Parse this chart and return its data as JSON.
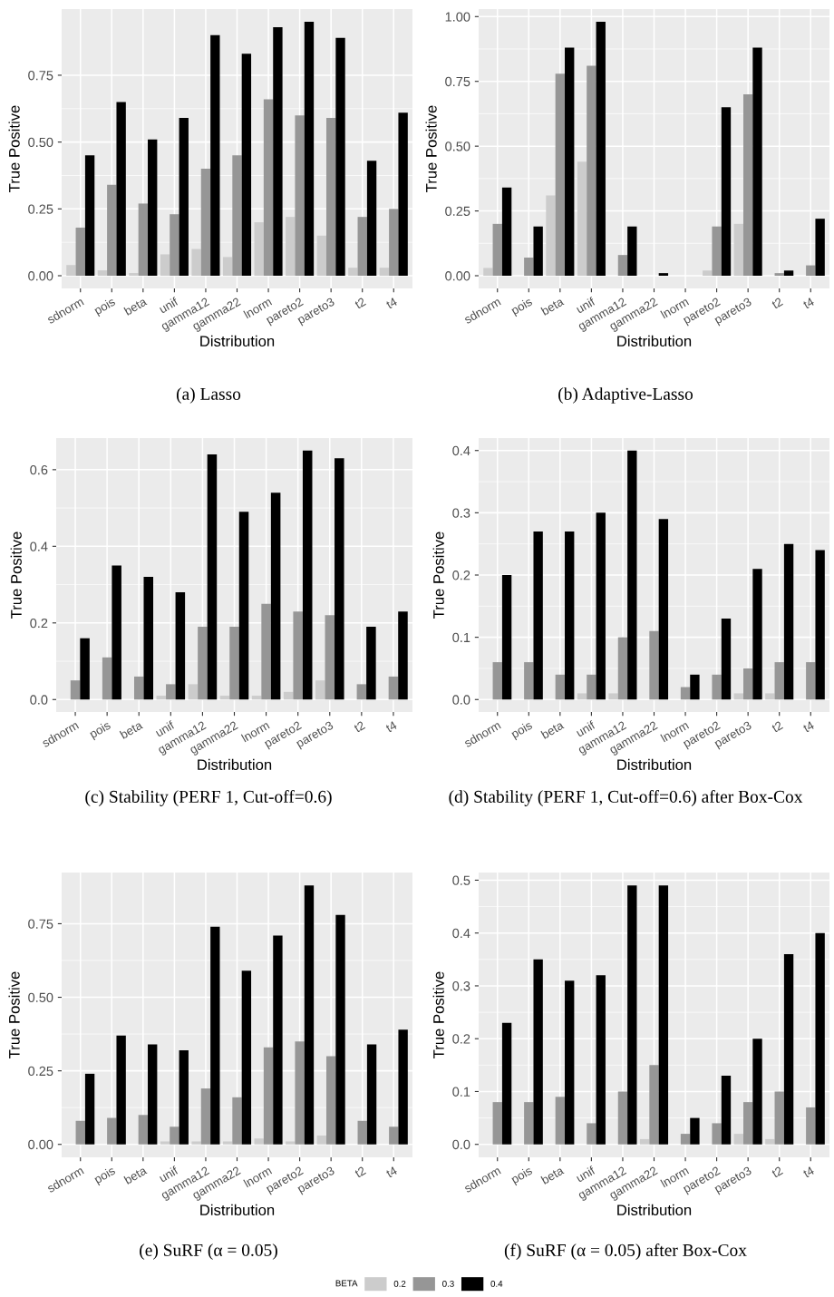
{
  "chart_data": [
    {
      "type": "bar",
      "xlabel": "Distribution",
      "ylabel": "True Positive",
      "annotations": [
        "(a) Lasso"
      ],
      "categories": [
        "sdnorm",
        "pois",
        "beta",
        "unif",
        "gamma12",
        "gamma22",
        "lnorm",
        "pareto2",
        "pareto3",
        "t2",
        "t4"
      ],
      "ylim": [
        -0.0475,
        0.9975
      ],
      "yticks": [
        {
          "value": 0,
          "label": "0.00"
        },
        {
          "value": 0.25,
          "label": "0.25"
        },
        {
          "value": 0.5,
          "label": "0.50"
        },
        {
          "value": 0.75,
          "label": "0.75"
        }
      ],
      "grid": true,
      "series": [
        {
          "color": "#cccccc",
          "values": [
            0.04,
            0.02,
            0.01,
            0.08,
            0.1,
            0.07,
            0.2,
            0.22,
            0.15,
            0.03,
            0.03
          ]
        },
        {
          "color": "#969696",
          "values": [
            0.18,
            0.34,
            0.27,
            0.23,
            0.4,
            0.45,
            0.66,
            0.6,
            0.59,
            0.22,
            0.25
          ]
        },
        {
          "color": "#000000",
          "values": [
            0.45,
            0.65,
            0.51,
            0.59,
            0.9,
            0.83,
            0.93,
            0.95,
            0.89,
            0.43,
            0.61
          ]
        }
      ]
    },
    {
      "type": "bar",
      "xlabel": "Distribution",
      "ylabel": "True Positive",
      "annotations": [
        "(b) Adaptive-Lasso"
      ],
      "categories": [
        "sdnorm",
        "pois",
        "beta",
        "unif",
        "gamma12",
        "gamma22",
        "lnorm",
        "pareto2",
        "pareto3",
        "t2",
        "t4"
      ],
      "ylim": [
        -0.049,
        1.029
      ],
      "yticks": [
        {
          "value": 0,
          "label": "0.00"
        },
        {
          "value": 0.25,
          "label": "0.25"
        },
        {
          "value": 0.5,
          "label": "0.50"
        },
        {
          "value": 0.75,
          "label": "0.75"
        },
        {
          "value": 1,
          "label": "1.00"
        }
      ],
      "grid": true,
      "series": [
        {
          "color": "#cccccc",
          "values": [
            0.03,
            0,
            0.31,
            0.44,
            0,
            0,
            0,
            0.02,
            0.2,
            0,
            0
          ]
        },
        {
          "color": "#969696",
          "values": [
            0.2,
            0.07,
            0.78,
            0.81,
            0.08,
            0,
            0,
            0.19,
            0.7,
            0.01,
            0.04
          ]
        },
        {
          "color": "#000000",
          "values": [
            0.34,
            0.19,
            0.88,
            0.98,
            0.19,
            0.01,
            0,
            0.65,
            0.88,
            0.02,
            0.22
          ]
        }
      ]
    },
    {
      "type": "bar",
      "xlabel": "Distribution",
      "ylabel": "True Positive",
      "annotations": [
        "(c) Stability (PERF 1, Cut-off=0.6)"
      ],
      "categories": [
        "sdnorm",
        "pois",
        "beta",
        "unif",
        "gamma12",
        "gamma22",
        "lnorm",
        "pareto2",
        "pareto3",
        "t2",
        "t4"
      ],
      "ylim": [
        -0.0325,
        0.6825
      ],
      "yticks": [
        {
          "value": 0,
          "label": "0.0"
        },
        {
          "value": 0.2,
          "label": "0.2"
        },
        {
          "value": 0.4,
          "label": "0.4"
        },
        {
          "value": 0.6,
          "label": "0.6"
        }
      ],
      "grid": true,
      "series": [
        {
          "color": "#cccccc",
          "values": [
            0,
            0,
            0,
            0.01,
            0.04,
            0.01,
            0.01,
            0.02,
            0.05,
            0,
            0
          ]
        },
        {
          "color": "#969696",
          "values": [
            0.05,
            0.11,
            0.06,
            0.04,
            0.19,
            0.19,
            0.25,
            0.23,
            0.22,
            0.04,
            0.06
          ]
        },
        {
          "color": "#000000",
          "values": [
            0.16,
            0.35,
            0.32,
            0.28,
            0.64,
            0.49,
            0.54,
            0.65,
            0.63,
            0.19,
            0.23
          ]
        }
      ]
    },
    {
      "type": "bar",
      "xlabel": "Distribution",
      "ylabel": "True Positive",
      "annotations": [
        "(d) Stability (PERF 1, Cut-off=0.6) after Box-Cox"
      ],
      "categories": [
        "sdnorm",
        "pois",
        "beta",
        "unif",
        "gamma12",
        "gamma22",
        "lnorm",
        "pareto2",
        "pareto3",
        "t2",
        "t4"
      ],
      "ylim": [
        -0.02,
        0.42
      ],
      "yticks": [
        {
          "value": 0,
          "label": "0.0"
        },
        {
          "value": 0.1,
          "label": "0.1"
        },
        {
          "value": 0.2,
          "label": "0.2"
        },
        {
          "value": 0.3,
          "label": "0.3"
        },
        {
          "value": 0.4,
          "label": "0.4"
        }
      ],
      "grid": true,
      "series": [
        {
          "color": "#cccccc",
          "values": [
            0,
            0,
            0,
            0.01,
            0.01,
            0,
            0,
            0,
            0.01,
            0.01,
            0
          ]
        },
        {
          "color": "#969696",
          "values": [
            0.06,
            0.06,
            0.04,
            0.04,
            0.1,
            0.11,
            0.02,
            0.04,
            0.05,
            0.06,
            0.06
          ]
        },
        {
          "color": "#000000",
          "values": [
            0.2,
            0.27,
            0.27,
            0.3,
            0.4,
            0.29,
            0.04,
            0.13,
            0.21,
            0.25,
            0.24
          ]
        }
      ]
    },
    {
      "type": "bar",
      "xlabel": "Distribution",
      "ylabel": "True Positive",
      "annotations": [
        "(e) SuRF (α = 0.05)"
      ],
      "categories": [
        "sdnorm",
        "pois",
        "beta",
        "unif",
        "gamma12",
        "gamma22",
        "lnorm",
        "pareto2",
        "pareto3",
        "t2",
        "t4"
      ],
      "ylim": [
        -0.044,
        0.924
      ],
      "yticks": [
        {
          "value": 0,
          "label": "0.00"
        },
        {
          "value": 0.25,
          "label": "0.25"
        },
        {
          "value": 0.5,
          "label": "0.50"
        },
        {
          "value": 0.75,
          "label": "0.75"
        }
      ],
      "grid": true,
      "series": [
        {
          "color": "#cccccc",
          "values": [
            0,
            0,
            0,
            0.01,
            0.01,
            0.01,
            0.02,
            0.01,
            0.03,
            0,
            0
          ]
        },
        {
          "color": "#969696",
          "values": [
            0.08,
            0.09,
            0.1,
            0.06,
            0.19,
            0.16,
            0.33,
            0.35,
            0.3,
            0.08,
            0.06
          ]
        },
        {
          "color": "#000000",
          "values": [
            0.24,
            0.37,
            0.34,
            0.32,
            0.74,
            0.59,
            0.71,
            0.88,
            0.78,
            0.34,
            0.39
          ]
        }
      ]
    },
    {
      "type": "bar",
      "xlabel": "Distribution",
      "ylabel": "True Positive",
      "annotations": [
        "(f) SuRF (α = 0.05) after Box-Cox"
      ],
      "categories": [
        "sdnorm",
        "pois",
        "beta",
        "unif",
        "gamma12",
        "gamma22",
        "lnorm",
        "pareto2",
        "pareto3",
        "t2",
        "t4"
      ],
      "ylim": [
        -0.0245,
        0.5145
      ],
      "yticks": [
        {
          "value": 0,
          "label": "0.0"
        },
        {
          "value": 0.1,
          "label": "0.1"
        },
        {
          "value": 0.2,
          "label": "0.2"
        },
        {
          "value": 0.3,
          "label": "0.3"
        },
        {
          "value": 0.4,
          "label": "0.4"
        },
        {
          "value": 0.5,
          "label": "0.5"
        }
      ],
      "grid": true,
      "legend": "bottom",
      "legend_title": "BETA",
      "series": [
        {
          "name": "0.2",
          "color": "#cccccc",
          "values": [
            0,
            0,
            0,
            0,
            0,
            0.01,
            0,
            0,
            0.02,
            0.01,
            0
          ]
        },
        {
          "name": "0.3",
          "color": "#969696",
          "values": [
            0.08,
            0.08,
            0.09,
            0.04,
            0.1,
            0.15,
            0.02,
            0.04,
            0.08,
            0.1,
            0.07
          ]
        },
        {
          "name": "0.4",
          "color": "#000000",
          "values": [
            0.23,
            0.35,
            0.31,
            0.32,
            0.49,
            0.49,
            0.05,
            0.13,
            0.2,
            0.36,
            0.4
          ]
        }
      ]
    }
  ]
}
